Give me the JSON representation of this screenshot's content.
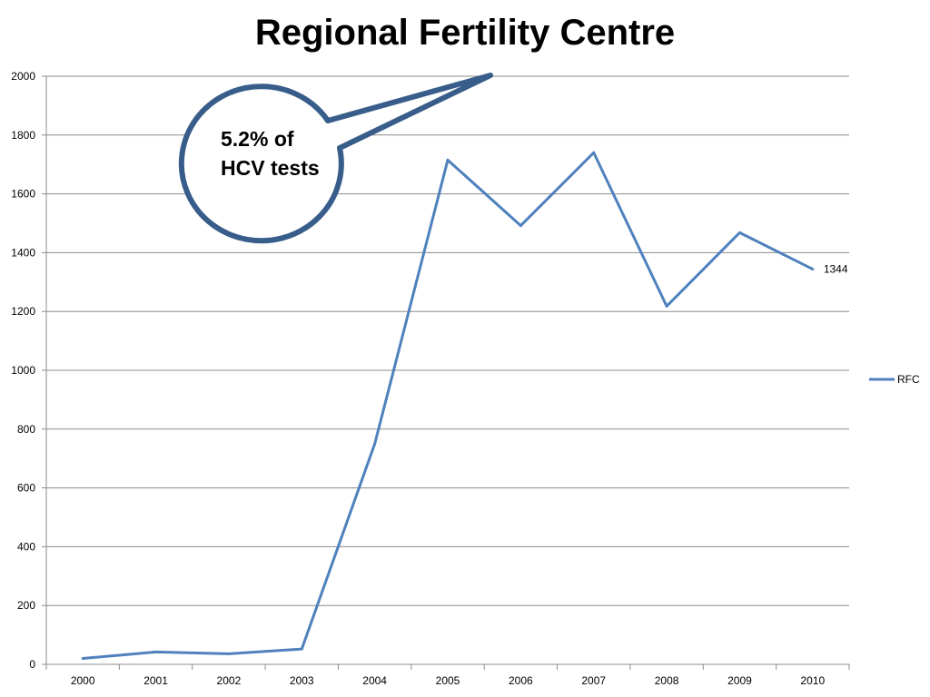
{
  "chart_data": {
    "type": "line",
    "title": "Regional Fertility Centre",
    "xlabel": "",
    "ylabel": "",
    "x": [
      "2000",
      "2001",
      "2002",
      "2003",
      "2004",
      "2005",
      "2006",
      "2007",
      "2008",
      "2009",
      "2010"
    ],
    "series": [
      {
        "name": "RFC",
        "values": [
          20,
          42,
          36,
          52,
          750,
          1715,
          1492,
          1740,
          1218,
          1468,
          1344
        ]
      }
    ],
    "ylim": [
      0,
      2000
    ],
    "yticks": [
      0,
      200,
      400,
      600,
      800,
      1000,
      1200,
      1400,
      1600,
      1800,
      2000
    ],
    "grid": true,
    "legend": "right",
    "data_labels": [
      {
        "index": 10,
        "text": "1344"
      }
    ],
    "annotation": {
      "line1": "5.2% of",
      "line2": "HCV tests"
    },
    "colors": {
      "series": "#4f81bd",
      "callout": "#385d8a",
      "grid": "#8c8c8c"
    }
  }
}
